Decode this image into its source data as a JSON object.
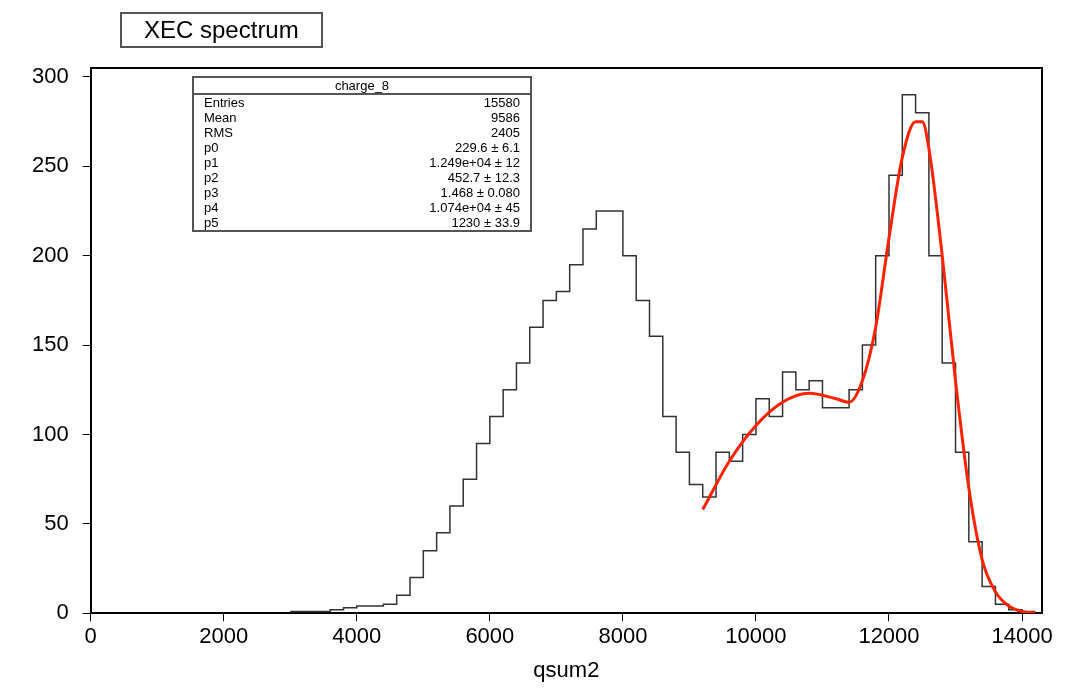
{
  "chart_data": {
    "type": "histogram",
    "title": "XEC spectrum",
    "xlabel": "qsum2",
    "xlim": [
      0,
      14300
    ],
    "xticks": [
      0,
      2000,
      4000,
      6000,
      8000,
      10000,
      12000,
      14000
    ],
    "ylim": [
      0,
      305
    ],
    "yticks": [
      0,
      50,
      100,
      150,
      200,
      250,
      300
    ],
    "grid": false,
    "legend": false,
    "bins": [
      3000,
      3200,
      3400,
      3600,
      3800,
      4000,
      4200,
      4400,
      4600,
      4800,
      5000,
      5200,
      5400,
      5600,
      5800,
      6000,
      6200,
      6400,
      6600,
      6800,
      7000,
      7200,
      7400,
      7600,
      7800,
      8000,
      8200,
      8400,
      8600,
      8800,
      9000,
      9200,
      9400,
      9600,
      9800,
      10000,
      10200,
      10400,
      10600,
      10800,
      11000,
      11200,
      11400,
      11600,
      11800,
      12000,
      12200,
      12400,
      12600,
      12800,
      13000,
      13200,
      13400,
      13600,
      13800,
      14000,
      14200
    ],
    "values": [
      1,
      1,
      1,
      2,
      3,
      4,
      4,
      5,
      10,
      20,
      35,
      45,
      60,
      75,
      95,
      110,
      125,
      140,
      160,
      175,
      180,
      195,
      215,
      225,
      225,
      200,
      175,
      155,
      110,
      90,
      72,
      65,
      90,
      85,
      100,
      120,
      110,
      135,
      125,
      130,
      115,
      115,
      125,
      150,
      200,
      245,
      290,
      280,
      200,
      140,
      90,
      40,
      15,
      5,
      2,
      1
    ],
    "color": "#333333",
    "series": [
      {
        "type": "line",
        "color": "#ff2200",
        "x": [
          9200,
          9600,
          10000,
          10400,
          10800,
          11200,
          11400,
          11600,
          11800,
          12000,
          12200,
          12400,
          12500,
          12600,
          12800,
          13000,
          13200,
          13400,
          13600,
          13800,
          14000,
          14200
        ],
        "values": [
          58,
          85,
          105,
          118,
          123,
          120,
          118,
          130,
          160,
          210,
          255,
          275,
          275,
          260,
          200,
          130,
          70,
          30,
          12,
          4,
          1,
          0
        ]
      }
    ],
    "annotations": [
      "charge_8",
      "Entries 15580",
      "Mean 9586",
      "RMS 2405",
      "p0 229.6 ± 6.1",
      "p1 1.249e+04 ± 12",
      "p2 452.7 ± 12.3",
      "p3 1.468 ± 0.080",
      "p4 1.074e+04 ± 45",
      "p5 1230 ± 33.9"
    ]
  }
}
